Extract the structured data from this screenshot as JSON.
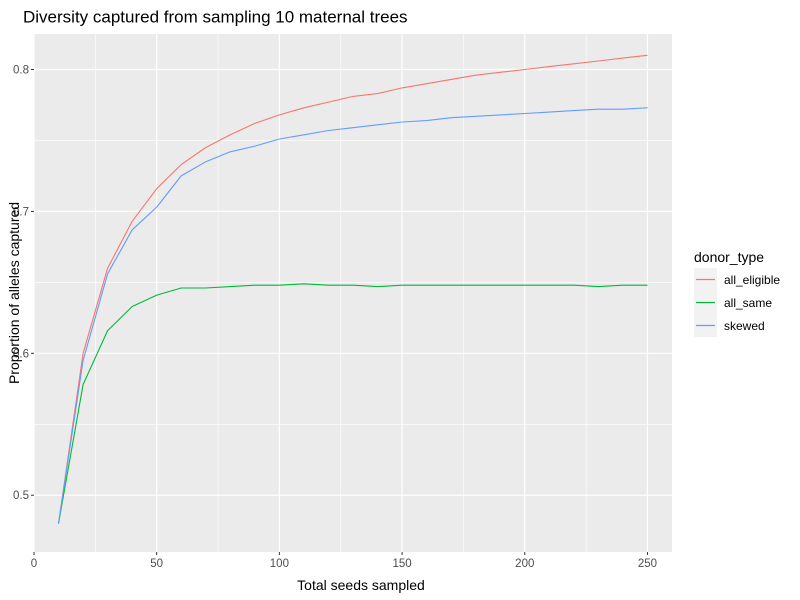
{
  "chart_data": {
    "type": "line",
    "title": "Diversity captured from sampling 10 maternal trees",
    "xlabel": "Total seeds sampled",
    "ylabel": "Proportion of alleles captured",
    "xlim": [
      0,
      260
    ],
    "ylim": [
      0.46,
      0.825
    ],
    "x_ticks": [
      0,
      50,
      100,
      150,
      200,
      250
    ],
    "x_tick_labels": [
      "0",
      "50",
      "100",
      "150",
      "200",
      "250"
    ],
    "y_ticks": [
      0.5,
      0.6,
      0.7,
      0.8
    ],
    "y_tick_labels": [
      "0.5",
      "0.6",
      "0.7",
      "0.8"
    ],
    "grid": true,
    "legend_title": "donor_type",
    "legend_position": "right",
    "x": [
      10,
      20,
      30,
      40,
      50,
      60,
      70,
      80,
      90,
      100,
      110,
      120,
      130,
      140,
      150,
      160,
      170,
      180,
      190,
      200,
      210,
      220,
      230,
      240,
      250
    ],
    "series": [
      {
        "name": "all_eligible",
        "color": "#F8766D",
        "values": [
          0.48,
          0.6,
          0.66,
          0.693,
          0.716,
          0.733,
          0.745,
          0.754,
          0.762,
          0.768,
          0.773,
          0.777,
          0.781,
          0.783,
          0.787,
          0.79,
          0.793,
          0.796,
          0.798,
          0.8,
          0.802,
          0.804,
          0.806,
          0.808,
          0.81
        ]
      },
      {
        "name": "all_same",
        "color": "#00BA38",
        "values": [
          0.48,
          0.578,
          0.616,
          0.633,
          0.641,
          0.646,
          0.646,
          0.647,
          0.648,
          0.648,
          0.649,
          0.648,
          0.648,
          0.647,
          0.648,
          0.648,
          0.648,
          0.648,
          0.648,
          0.648,
          0.648,
          0.648,
          0.647,
          0.648,
          0.648
        ]
      },
      {
        "name": "skewed",
        "color": "#619CFF",
        "values": [
          0.48,
          0.595,
          0.656,
          0.687,
          0.703,
          0.725,
          0.735,
          0.742,
          0.746,
          0.751,
          0.754,
          0.757,
          0.759,
          0.761,
          0.763,
          0.764,
          0.766,
          0.767,
          0.768,
          0.769,
          0.77,
          0.771,
          0.772,
          0.772,
          0.773
        ]
      }
    ]
  },
  "colors": {
    "panel_background": "#EBEBEB",
    "grid_major": "#FFFFFF",
    "legend_key_background": "#F2F2F2"
  }
}
